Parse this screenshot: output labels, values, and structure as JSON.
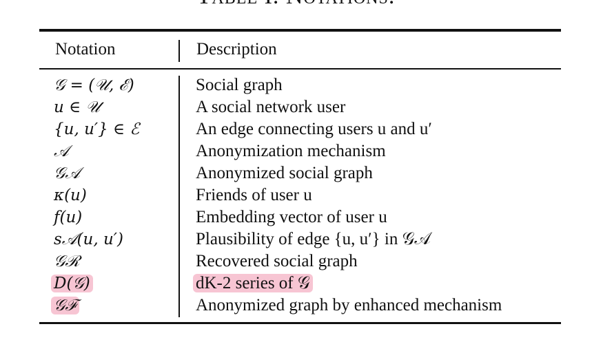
{
  "caption": "Table I. Notations.",
  "headers": {
    "notation": "Notation",
    "description": "Description"
  },
  "rows": [
    {
      "notation": "𝒢 = (𝒰, ℰ)",
      "description": "Social graph"
    },
    {
      "notation": "u ∈ 𝒰",
      "description": "A social network user"
    },
    {
      "notation": "{u, u′} ∈ ℰ",
      "description": "An edge connecting users u and u′"
    },
    {
      "notation": "𝒜",
      "description": "Anonymization mechanism"
    },
    {
      "notation": "𝒢𝒜",
      "description": "Anonymized social graph"
    },
    {
      "notation": "κ(u)",
      "description": "Friends of user u"
    },
    {
      "notation": "f(u)",
      "description": "Embedding vector of user u"
    },
    {
      "notation": "s𝒜(u, u′)",
      "description": "Plausibility of edge {u, u′} in 𝒢𝒜"
    },
    {
      "notation": "𝒢ℛ",
      "description": "Recovered social graph"
    },
    {
      "notation": "D(𝒢)",
      "description": "dK-2 series of 𝒢"
    },
    {
      "notation": "𝒢ℱ",
      "description": "Anonymized graph by enhanced mechanism"
    }
  ],
  "highlight_color": "#f7c5d3"
}
